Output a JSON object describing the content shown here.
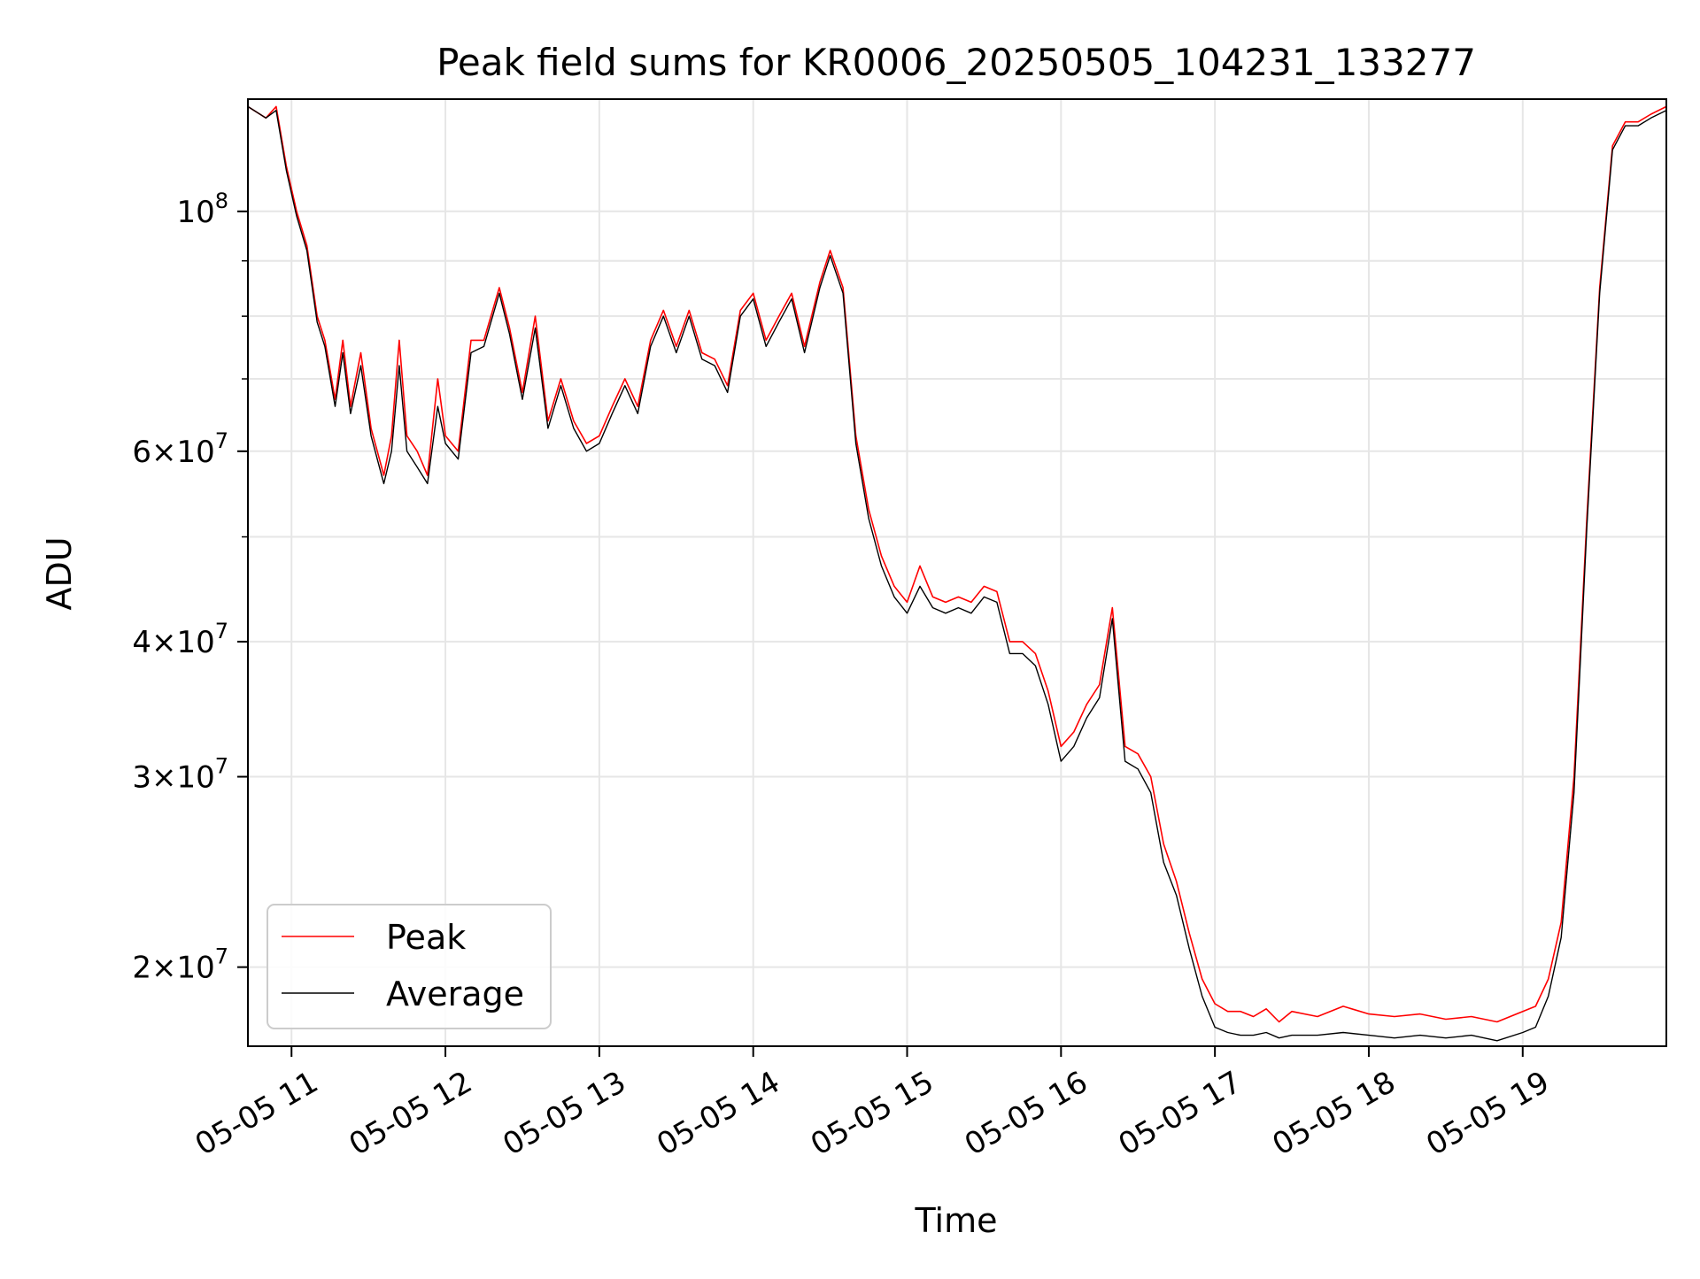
{
  "chart_data": {
    "type": "line",
    "title": "Peak field sums for KR0006_20250505_104231_133277",
    "xlabel": "Time",
    "ylabel": "ADU",
    "yscale": "log",
    "xlim": [
      "05-05 10:43",
      "05-05 19:56"
    ],
    "ylim": [
      16900000,
      127000000
    ],
    "grid": true,
    "legend": {
      "position": "lower-left",
      "entries": [
        "Peak",
        "Average"
      ]
    },
    "x_ticks": [
      "05-05 11",
      "05-05 12",
      "05-05 13",
      "05-05 14",
      "05-05 15",
      "05-05 16",
      "05-05 17",
      "05-05 18",
      "05-05 19"
    ],
    "y_ticks": [
      {
        "value": 100000000,
        "label": "10^8"
      },
      {
        "value": 60000000,
        "label": "6×10^7"
      },
      {
        "value": 40000000,
        "label": "4×10^7"
      },
      {
        "value": 30000000,
        "label": "3×10^7"
      },
      {
        "value": 20000000,
        "label": "2×10^7"
      }
    ],
    "x": [
      "05-05 10:43",
      "05-05 10:50",
      "05-05 10:54",
      "05-05 10:58",
      "05-05 11:02",
      "05-05 11:06",
      "05-05 11:10",
      "05-05 11:13",
      "05-05 11:17",
      "05-05 11:20",
      "05-05 11:23",
      "05-05 11:27",
      "05-05 11:31",
      "05-05 11:36",
      "05-05 11:39",
      "05-05 11:42",
      "05-05 11:45",
      "05-05 11:49",
      "05-05 11:53",
      "05-05 11:57",
      "05-05 12:00",
      "05-05 12:05",
      "05-05 12:10",
      "05-05 12:15",
      "05-05 12:21",
      "05-05 12:25",
      "05-05 12:30",
      "05-05 12:35",
      "05-05 12:40",
      "05-05 12:45",
      "05-05 12:50",
      "05-05 12:55",
      "05-05 13:00",
      "05-05 13:05",
      "05-05 13:10",
      "05-05 13:15",
      "05-05 13:20",
      "05-05 13:25",
      "05-05 13:30",
      "05-05 13:35",
      "05-05 13:40",
      "05-05 13:45",
      "05-05 13:50",
      "05-05 13:55",
      "05-05 14:00",
      "05-05 14:05",
      "05-05 14:10",
      "05-05 14:15",
      "05-05 14:20",
      "05-05 14:26",
      "05-05 14:30",
      "05-05 14:35",
      "05-05 14:40",
      "05-05 14:45",
      "05-05 14:50",
      "05-05 14:55",
      "05-05 15:00",
      "05-05 15:05",
      "05-05 15:10",
      "05-05 15:15",
      "05-05 15:20",
      "05-05 15:25",
      "05-05 15:30",
      "05-05 15:35",
      "05-05 15:40",
      "05-05 15:45",
      "05-05 15:50",
      "05-05 15:55",
      "05-05 16:00",
      "05-05 16:05",
      "05-05 16:10",
      "05-05 16:15",
      "05-05 16:20",
      "05-05 16:25",
      "05-05 16:30",
      "05-05 16:35",
      "05-05 16:40",
      "05-05 16:45",
      "05-05 16:50",
      "05-05 16:55",
      "05-05 17:00",
      "05-05 17:05",
      "05-05 17:10",
      "05-05 17:15",
      "05-05 17:20",
      "05-05 17:25",
      "05-05 17:30",
      "05-05 17:40",
      "05-05 17:50",
      "05-05 18:00",
      "05-05 18:10",
      "05-05 18:20",
      "05-05 18:30",
      "05-05 18:40",
      "05-05 18:50",
      "05-05 19:00",
      "05-05 19:05",
      "05-05 19:10",
      "05-05 19:15",
      "05-05 19:20",
      "05-05 19:25",
      "05-05 19:30",
      "05-05 19:35",
      "05-05 19:40",
      "05-05 19:45",
      "05-05 19:50",
      "05-05 19:56"
    ],
    "series": [
      {
        "name": "Peak",
        "color": "#ff0000",
        "values": [
          125000000,
          122000000,
          125000000,
          110000000,
          100000000,
          93000000,
          80000000,
          76000000,
          67000000,
          76000000,
          66000000,
          74000000,
          63000000,
          57000000,
          62000000,
          76000000,
          62000000,
          60000000,
          57000000,
          70000000,
          62000000,
          60000000,
          76000000,
          76000000,
          85000000,
          78000000,
          68000000,
          80000000,
          64000000,
          70000000,
          64000000,
          61000000,
          62000000,
          66000000,
          70000000,
          66000000,
          76000000,
          81000000,
          75000000,
          81000000,
          74000000,
          73000000,
          69000000,
          81000000,
          84000000,
          76000000,
          80000000,
          84000000,
          75000000,
          86000000,
          92000000,
          85000000,
          62000000,
          53000000,
          48000000,
          45000000,
          43500000,
          47000000,
          44000000,
          43500000,
          44000000,
          43500000,
          45000000,
          44500000,
          40000000,
          40000000,
          39000000,
          36000000,
          32000000,
          33000000,
          35000000,
          36500000,
          43000000,
          32000000,
          31500000,
          30000000,
          26000000,
          24000000,
          21500000,
          19500000,
          18500000,
          18200000,
          18200000,
          18000000,
          18300000,
          17800000,
          18200000,
          18000000,
          18400000,
          18100000,
          18000000,
          18100000,
          17900000,
          18000000,
          17800000,
          18200000,
          18400000,
          19500000,
          22000000,
          30000000,
          52000000,
          85000000,
          115000000,
          121000000,
          121000000,
          123000000,
          125000000
        ]
      },
      {
        "name": "Average",
        "color": "#000000",
        "values": [
          125000000,
          122000000,
          124000000,
          109000000,
          99000000,
          92000000,
          79000000,
          75000000,
          66000000,
          74000000,
          65000000,
          72000000,
          62000000,
          56000000,
          60000000,
          72000000,
          60000000,
          58000000,
          56000000,
          66000000,
          61000000,
          59000000,
          74000000,
          75000000,
          84000000,
          77000000,
          67000000,
          78000000,
          63000000,
          69000000,
          63000000,
          60000000,
          61000000,
          65000000,
          69000000,
          65000000,
          75000000,
          80000000,
          74000000,
          80000000,
          73000000,
          72000000,
          68000000,
          80000000,
          83000000,
          75000000,
          79000000,
          83000000,
          74000000,
          85000000,
          91000000,
          84000000,
          61000000,
          52000000,
          47000000,
          44000000,
          42500000,
          45000000,
          43000000,
          42500000,
          43000000,
          42500000,
          44000000,
          43500000,
          39000000,
          39000000,
          38000000,
          35000000,
          31000000,
          32000000,
          34000000,
          35500000,
          42000000,
          31000000,
          30500000,
          29000000,
          25000000,
          23300000,
          20800000,
          18800000,
          17600000,
          17400000,
          17300000,
          17300000,
          17400000,
          17200000,
          17300000,
          17300000,
          17400000,
          17300000,
          17200000,
          17300000,
          17200000,
          17300000,
          17100000,
          17400000,
          17600000,
          18800000,
          21300000,
          29000000,
          51000000,
          84000000,
          114000000,
          120000000,
          120000000,
          122000000,
          124000000
        ]
      }
    ]
  }
}
